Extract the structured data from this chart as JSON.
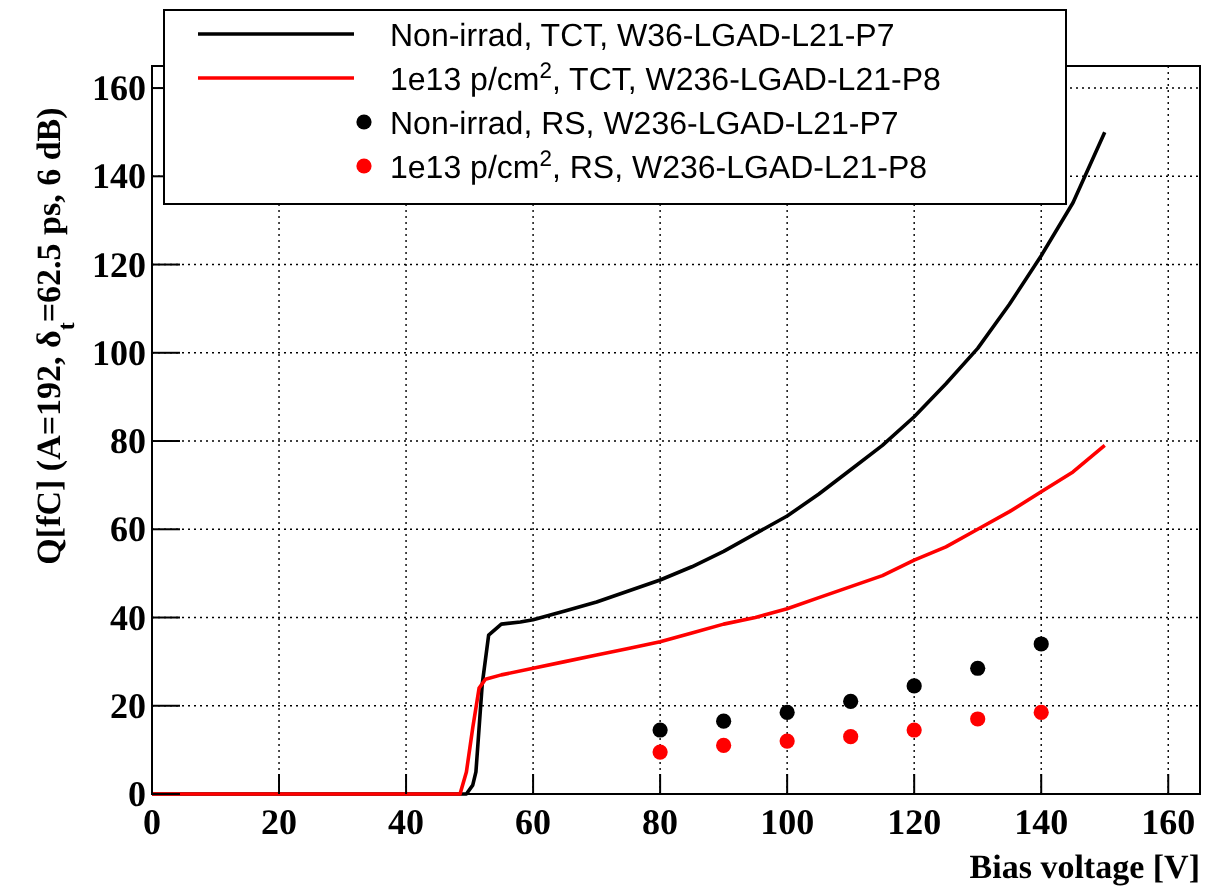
{
  "chart_data": {
    "type": "line",
    "xlabel": "Bias voltage [V]",
    "ylabel": "Q[fC] (A=192,  δ$_{t}$=62.5 ps, 6 dB)",
    "xlim": [
      0,
      165
    ],
    "ylim": [
      0,
      165
    ],
    "xticks": [
      0,
      20,
      40,
      60,
      80,
      100,
      120,
      140,
      160
    ],
    "yticks": [
      0,
      20,
      40,
      60,
      80,
      100,
      120,
      140,
      160
    ],
    "grid": true,
    "legend": "top",
    "line_style": "solid",
    "series": [
      {
        "name": "Non-irrad, TCT, W36-LGAD-L21-P7",
        "color": "#000000",
        "x": [
          0,
          10,
          20,
          30,
          40,
          49.5,
          50.5,
          51,
          52,
          53,
          55,
          58,
          60,
          65,
          70,
          75,
          80,
          85,
          90,
          95,
          100,
          105,
          110,
          115,
          120,
          125,
          130,
          135,
          140,
          145,
          150
        ],
        "values": [
          0,
          0,
          0,
          0,
          0,
          0,
          2,
          5,
          25,
          36,
          38.5,
          39,
          39.5,
          41.5,
          43.5,
          46,
          48.5,
          51.5,
          55,
          59,
          63,
          68,
          73.5,
          79,
          85.5,
          93,
          101,
          111,
          122,
          134,
          150
        ]
      },
      {
        "name": "1e13 p/cm$^{2}$, TCT, W236-LGAD-L21-P8",
        "color": "#ff0000",
        "x": [
          0,
          10,
          20,
          30,
          40,
          48.5,
          49.5,
          50.5,
          51.5,
          52.5,
          55,
          60,
          65,
          70,
          75,
          80,
          85,
          90,
          95,
          100,
          105,
          110,
          115,
          120,
          125,
          130,
          135,
          140,
          145,
          150
        ],
        "values": [
          0,
          0,
          0,
          0,
          0,
          0,
          5,
          15,
          24,
          26,
          27,
          28.5,
          30,
          31.5,
          33,
          34.5,
          36.5,
          38.5,
          40,
          42,
          44.5,
          47,
          49.5,
          53,
          56,
          60,
          64,
          68.5,
          73,
          79
        ]
      },
      {
        "name": "Non-irrad, RS, W236-LGAD-L21-P7",
        "color": "#000000",
        "type": "scatter",
        "marker": "circle",
        "x": [
          80,
          90,
          100,
          110,
          120,
          130,
          140
        ],
        "values": [
          14.5,
          16.5,
          18.5,
          21,
          24.5,
          28.5,
          34
        ]
      },
      {
        "name": "1e13 p/cm$^{2}$, RS, W236-LGAD-L21-P8",
        "color": "#ff0000",
        "type": "scatter",
        "marker": "circle",
        "x": [
          80,
          90,
          100,
          110,
          120,
          130,
          140
        ],
        "values": [
          9.5,
          11,
          12,
          13,
          14.5,
          17,
          18.5
        ]
      }
    ]
  }
}
